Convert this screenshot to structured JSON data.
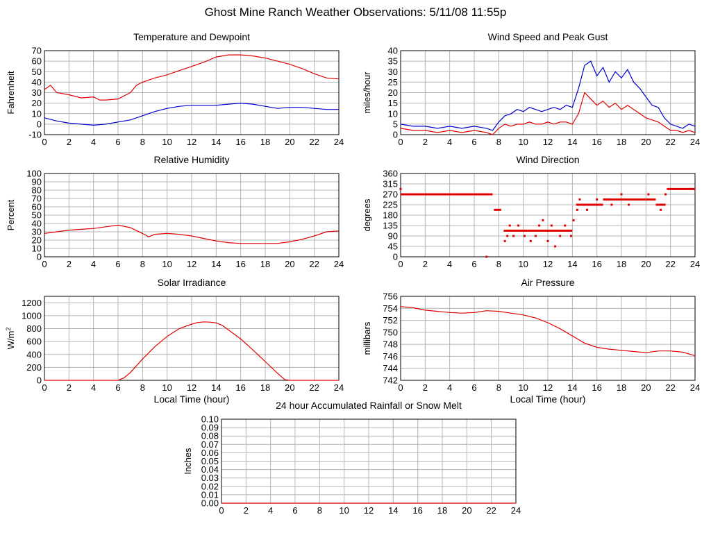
{
  "page_title": "Ghost Mine Ranch Weather Observations: 5/11/08 11:55p",
  "colors": {
    "red": "#e00000",
    "blue": "#0000d0",
    "grid": "#b4b4b4",
    "axis": "#000000"
  },
  "chart_data": [
    {
      "id": "temp",
      "type": "line",
      "title": "Temperature and Dewpoint",
      "ylabel": "Fahrenheit",
      "xlabel": "",
      "xlim": [
        0,
        24
      ],
      "ylim": [
        -10,
        70
      ],
      "xticks": [
        0,
        2,
        4,
        6,
        8,
        10,
        12,
        14,
        16,
        18,
        20,
        22,
        24
      ],
      "yticks": [
        -10,
        0,
        10,
        20,
        30,
        40,
        50,
        60,
        70
      ],
      "grid": true,
      "series": [
        {
          "color": "#e00000",
          "x": [
            0,
            0.5,
            1,
            2,
            3,
            4,
            4.5,
            5,
            6,
            7,
            7.5,
            8,
            9,
            10,
            11,
            12,
            13,
            14,
            15,
            16,
            17,
            18,
            19,
            20,
            21,
            22,
            23,
            24
          ],
          "values": [
            33,
            37,
            30,
            28,
            25,
            26,
            23,
            23,
            24,
            30,
            37,
            40,
            44,
            47,
            51,
            55,
            59,
            64,
            66,
            66,
            65,
            63,
            60,
            57,
            53,
            48,
            44,
            43
          ]
        },
        {
          "color": "#0000d0",
          "x": [
            0,
            1,
            2,
            3,
            4,
            5,
            6,
            7,
            8,
            9,
            10,
            11,
            12,
            13,
            14,
            15,
            16,
            17,
            18,
            19,
            20,
            21,
            22,
            23,
            24
          ],
          "values": [
            6,
            3,
            1,
            0,
            -1,
            0,
            2,
            4,
            8,
            12,
            15,
            17,
            18,
            18,
            18,
            19,
            20,
            19,
            17,
            15,
            16,
            16,
            15,
            14,
            14
          ]
        }
      ]
    },
    {
      "id": "wind",
      "type": "line",
      "title": "Wind Speed and Peak Gust",
      "ylabel": "miles/hour",
      "xlabel": "",
      "xlim": [
        0,
        24
      ],
      "ylim": [
        0,
        40
      ],
      "xticks": [
        0,
        2,
        4,
        6,
        8,
        10,
        12,
        14,
        16,
        18,
        20,
        22,
        24
      ],
      "yticks": [
        0,
        5,
        10,
        15,
        20,
        25,
        30,
        35,
        40
      ],
      "grid": true,
      "series": [
        {
          "color": "#0000d0",
          "x": [
            0,
            1,
            2,
            3,
            4,
            5,
            6,
            7,
            7.5,
            8,
            8.5,
            9,
            9.5,
            10,
            10.5,
            11,
            11.5,
            12,
            12.5,
            13,
            13.5,
            14,
            14.5,
            15,
            15.5,
            16,
            16.5,
            17,
            17.5,
            18,
            18.5,
            19,
            19.5,
            20,
            20.5,
            21,
            21.5,
            22,
            22.5,
            23,
            23.5,
            24
          ],
          "values": [
            5,
            4,
            4,
            3,
            4,
            3,
            4,
            3,
            2,
            6,
            9,
            10,
            12,
            11,
            13,
            12,
            11,
            12,
            13,
            12,
            14,
            13,
            22,
            33,
            35,
            28,
            32,
            25,
            30,
            27,
            31,
            25,
            22,
            18,
            14,
            13,
            8,
            5,
            4,
            3,
            5,
            4
          ]
        },
        {
          "color": "#e00000",
          "x": [
            0,
            1,
            2,
            3,
            4,
            5,
            6,
            7,
            7.5,
            8,
            8.5,
            9,
            9.5,
            10,
            10.5,
            11,
            11.5,
            12,
            12.5,
            13,
            13.5,
            14,
            14.5,
            15,
            15.5,
            16,
            16.5,
            17,
            17.5,
            18,
            18.5,
            19,
            19.5,
            20,
            20.5,
            21,
            21.5,
            22,
            22.5,
            23,
            23.5,
            24
          ],
          "values": [
            3,
            2,
            2,
            1,
            2,
            1,
            2,
            1,
            0,
            3,
            5,
            4,
            5,
            5,
            6,
            5,
            5,
            6,
            5,
            6,
            6,
            5,
            10,
            20,
            17,
            14,
            16,
            13,
            15,
            12,
            14,
            12,
            10,
            8,
            7,
            6,
            4,
            2,
            2,
            1,
            2,
            1
          ]
        }
      ]
    },
    {
      "id": "rh",
      "type": "line",
      "title": "Relative Humidity",
      "ylabel": "Percent",
      "xlabel": "",
      "xlim": [
        0,
        24
      ],
      "ylim": [
        0,
        100
      ],
      "xticks": [
        0,
        2,
        4,
        6,
        8,
        10,
        12,
        14,
        16,
        18,
        20,
        22,
        24
      ],
      "yticks": [
        0,
        10,
        20,
        30,
        40,
        50,
        60,
        70,
        80,
        90,
        100
      ],
      "grid": true,
      "series": [
        {
          "color": "#e00000",
          "x": [
            0,
            1,
            2,
            3,
            4,
            5,
            6,
            7,
            8,
            8.5,
            9,
            10,
            11,
            12,
            13,
            14,
            15,
            16,
            17,
            18,
            19,
            20,
            21,
            22,
            23,
            24
          ],
          "values": [
            28,
            30,
            32,
            33,
            34,
            36,
            38,
            35,
            28,
            24,
            27,
            28,
            27,
            25,
            22,
            19,
            17,
            16,
            16,
            16,
            16,
            18,
            21,
            25,
            30,
            31
          ]
        }
      ]
    },
    {
      "id": "dir",
      "type": "scatter",
      "title": "Wind Direction",
      "ylabel": "degrees",
      "xlabel": "",
      "xlim": [
        0,
        24
      ],
      "ylim": [
        0,
        360
      ],
      "xticks": [
        0,
        2,
        4,
        6,
        8,
        10,
        12,
        14,
        16,
        18,
        20,
        22,
        24
      ],
      "yticks": [
        0,
        45,
        90,
        135,
        180,
        225,
        270,
        315,
        360
      ],
      "grid": true,
      "series": [
        {
          "color": "#e00000",
          "segments": [
            {
              "x": [
                0,
                7.5
              ],
              "y": 270
            },
            {
              "x": [
                7.6,
                8.2
              ],
              "y": 203
            },
            {
              "x": [
                8.4,
                11.8
              ],
              "y": 113
            },
            {
              "x": [
                11.8,
                14.0
              ],
              "y": 113
            },
            {
              "x": [
                14.3,
                16.5
              ],
              "y": 225
            },
            {
              "x": [
                16.5,
                20.8
              ],
              "y": 248
            },
            {
              "x": [
                20.8,
                21.6
              ],
              "y": 225
            },
            {
              "x": [
                21.7,
                24
              ],
              "y": 293
            }
          ],
          "points": [
            [
              0,
              293
            ],
            [
              7,
              0
            ],
            [
              8.5,
              68
            ],
            [
              8.7,
              90
            ],
            [
              8.9,
              135
            ],
            [
              9.2,
              90
            ],
            [
              9.6,
              135
            ],
            [
              10.1,
              90
            ],
            [
              10.6,
              68
            ],
            [
              11,
              90
            ],
            [
              11.3,
              135
            ],
            [
              11.6,
              158
            ],
            [
              12,
              68
            ],
            [
              12.3,
              135
            ],
            [
              12.6,
              45
            ],
            [
              13,
              90
            ],
            [
              13.4,
              135
            ],
            [
              13.9,
              90
            ],
            [
              14.1,
              158
            ],
            [
              14.4,
              203
            ],
            [
              14.6,
              248
            ],
            [
              15.2,
              203
            ],
            [
              16,
              248
            ],
            [
              17.2,
              225
            ],
            [
              18,
              270
            ],
            [
              18.6,
              225
            ],
            [
              20.2,
              270
            ],
            [
              21.2,
              203
            ],
            [
              21.6,
              270
            ]
          ]
        }
      ]
    },
    {
      "id": "solar",
      "type": "line",
      "title": "Solar Irradiance",
      "ylabel": "W/m",
      "ylabel_sup": "2",
      "xlabel": "Local Time (hour)",
      "xlim": [
        0,
        24
      ],
      "ylim": [
        0,
        1300
      ],
      "xticks": [
        0,
        2,
        4,
        6,
        8,
        10,
        12,
        14,
        16,
        18,
        20,
        22,
        24
      ],
      "yticks": [
        0,
        200,
        400,
        600,
        800,
        1000,
        1200
      ],
      "grid": true,
      "series": [
        {
          "color": "#e00000",
          "x": [
            0,
            6,
            6.5,
            7,
            8,
            9,
            10,
            11,
            12,
            12.5,
            13,
            13.5,
            14,
            14.5,
            15,
            16,
            17,
            18,
            19,
            19.6,
            20,
            24
          ],
          "values": [
            0,
            0,
            40,
            120,
            330,
            520,
            680,
            800,
            870,
            895,
            905,
            900,
            890,
            850,
            780,
            640,
            470,
            290,
            110,
            10,
            0,
            0
          ]
        }
      ]
    },
    {
      "id": "press",
      "type": "line",
      "title": "Air Pressure",
      "ylabel": "millibars",
      "xlabel": "Local Time (hour)",
      "xlim": [
        0,
        24
      ],
      "ylim": [
        742,
        756
      ],
      "xticks": [
        0,
        2,
        4,
        6,
        8,
        10,
        12,
        14,
        16,
        18,
        20,
        22,
        24
      ],
      "yticks": [
        742,
        744,
        746,
        748,
        750,
        752,
        754,
        756
      ],
      "grid": true,
      "series": [
        {
          "color": "#e00000",
          "x": [
            0,
            1,
            2,
            3,
            4,
            5,
            6,
            7,
            8,
            9,
            10,
            11,
            12,
            13,
            14,
            15,
            16,
            17,
            18,
            19,
            20,
            21,
            22,
            23,
            24
          ],
          "values": [
            754.3,
            754.1,
            753.7,
            753.5,
            753.3,
            753.2,
            753.3,
            753.6,
            753.5,
            753.2,
            752.9,
            752.4,
            751.6,
            750.6,
            749.4,
            748.2,
            747.5,
            747.2,
            747.0,
            746.8,
            746.6,
            746.9,
            746.9,
            746.7,
            746.1
          ]
        }
      ]
    },
    {
      "id": "rain",
      "type": "line",
      "title": "24 hour Accumulated Rainfall or Snow Melt",
      "ylabel": "Inches",
      "xlabel": "",
      "xlim": [
        0,
        24
      ],
      "ylim": [
        0,
        0.1
      ],
      "xticks": [
        0,
        2,
        4,
        6,
        8,
        10,
        12,
        14,
        16,
        18,
        20,
        22,
        24
      ],
      "yticks": [
        "0.00",
        "0.01",
        "0.02",
        "0.03",
        "0.04",
        "0.05",
        "0.06",
        "0.07",
        "0.08",
        "0.09",
        "0.10"
      ],
      "grid": true,
      "series": [
        {
          "color": "#e00000",
          "x": [
            0,
            24
          ],
          "values": [
            0,
            0
          ]
        }
      ]
    }
  ]
}
